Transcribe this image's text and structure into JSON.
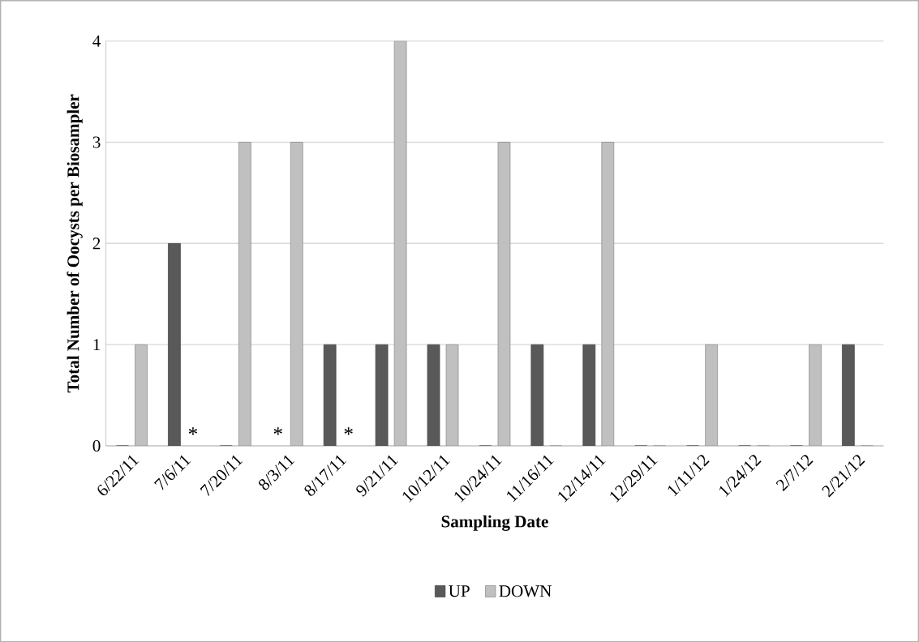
{
  "chart_data": {
    "type": "bar",
    "xlabel": "Sampling Date",
    "ylabel": "Total Number of  Oocysts per Biosampler",
    "categories": [
      "6/22/11",
      "7/6/11",
      "7/20/11",
      "8/3/11",
      "8/17/11",
      "9/21/11",
      "10/12/11",
      "10/24/11",
      "11/16/11",
      "12/14/11",
      "12/29/11",
      "1/11/12",
      "1/24/12",
      "2/7/12",
      "2/21/12"
    ],
    "series": [
      {
        "name": "UP",
        "color": "#595959",
        "values": [
          0,
          2,
          0,
          null,
          1,
          1,
          1,
          0,
          1,
          1,
          0,
          0,
          0,
          0,
          1
        ]
      },
      {
        "name": "DOWN",
        "color": "#c0c0c0",
        "values": [
          1,
          null,
          3,
          3,
          null,
          4,
          1,
          3,
          0,
          3,
          0,
          1,
          0,
          1,
          0
        ]
      }
    ],
    "ylim": [
      0,
      4
    ],
    "yticks": [
      0,
      1,
      2,
      3,
      4
    ],
    "grid": "y",
    "legend": "bottom",
    "annotations": [
      "*",
      "*",
      "*"
    ]
  }
}
